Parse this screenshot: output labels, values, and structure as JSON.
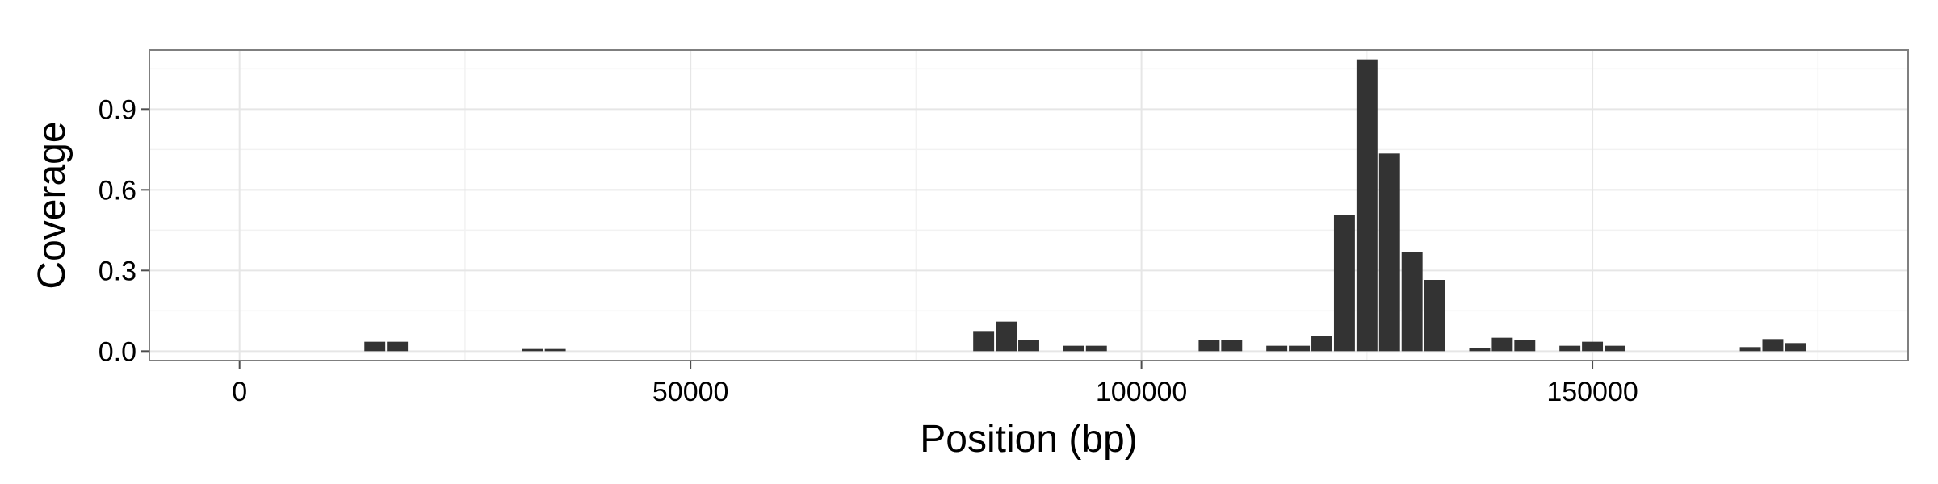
{
  "chart_data": {
    "type": "bar",
    "title": "",
    "xlabel": "Position (bp)",
    "ylabel": "Coverage",
    "xlim": [
      -10000,
      185000
    ],
    "ylim": [
      -0.035,
      1.12
    ],
    "x_ticks": [
      0,
      50000,
      100000,
      150000
    ],
    "x_tick_labels": [
      "0",
      "50000",
      "100000",
      "150000"
    ],
    "y_ticks": [
      0.0,
      0.3,
      0.6,
      0.9
    ],
    "y_tick_labels": [
      "0.0",
      "0.3",
      "0.6",
      "0.9"
    ],
    "bin_width": 2500,
    "grid": true,
    "legend": "none",
    "colors": {
      "bar": "#333333",
      "panel_bg": "#ffffff",
      "grid_major": "#e6e6e6",
      "grid_minor": "#f2f2f2",
      "panel_border": "#7f7f7f"
    },
    "bars": [
      {
        "x": 15000,
        "y": 0.035
      },
      {
        "x": 17500,
        "y": 0.035
      },
      {
        "x": 32500,
        "y": 0.008
      },
      {
        "x": 35000,
        "y": 0.008
      },
      {
        "x": 82500,
        "y": 0.075
      },
      {
        "x": 85000,
        "y": 0.11
      },
      {
        "x": 87500,
        "y": 0.04
      },
      {
        "x": 92500,
        "y": 0.02
      },
      {
        "x": 95000,
        "y": 0.02
      },
      {
        "x": 107500,
        "y": 0.04
      },
      {
        "x": 110000,
        "y": 0.04
      },
      {
        "x": 115000,
        "y": 0.02
      },
      {
        "x": 117500,
        "y": 0.02
      },
      {
        "x": 120000,
        "y": 0.055
      },
      {
        "x": 122500,
        "y": 0.505
      },
      {
        "x": 125000,
        "y": 1.085
      },
      {
        "x": 127500,
        "y": 0.735
      },
      {
        "x": 130000,
        "y": 0.37
      },
      {
        "x": 132500,
        "y": 0.265
      },
      {
        "x": 137500,
        "y": 0.012
      },
      {
        "x": 140000,
        "y": 0.05
      },
      {
        "x": 142500,
        "y": 0.04
      },
      {
        "x": 147500,
        "y": 0.02
      },
      {
        "x": 150000,
        "y": 0.035
      },
      {
        "x": 152500,
        "y": 0.02
      },
      {
        "x": 167500,
        "y": 0.015
      },
      {
        "x": 170000,
        "y": 0.045
      },
      {
        "x": 172500,
        "y": 0.03
      }
    ]
  }
}
